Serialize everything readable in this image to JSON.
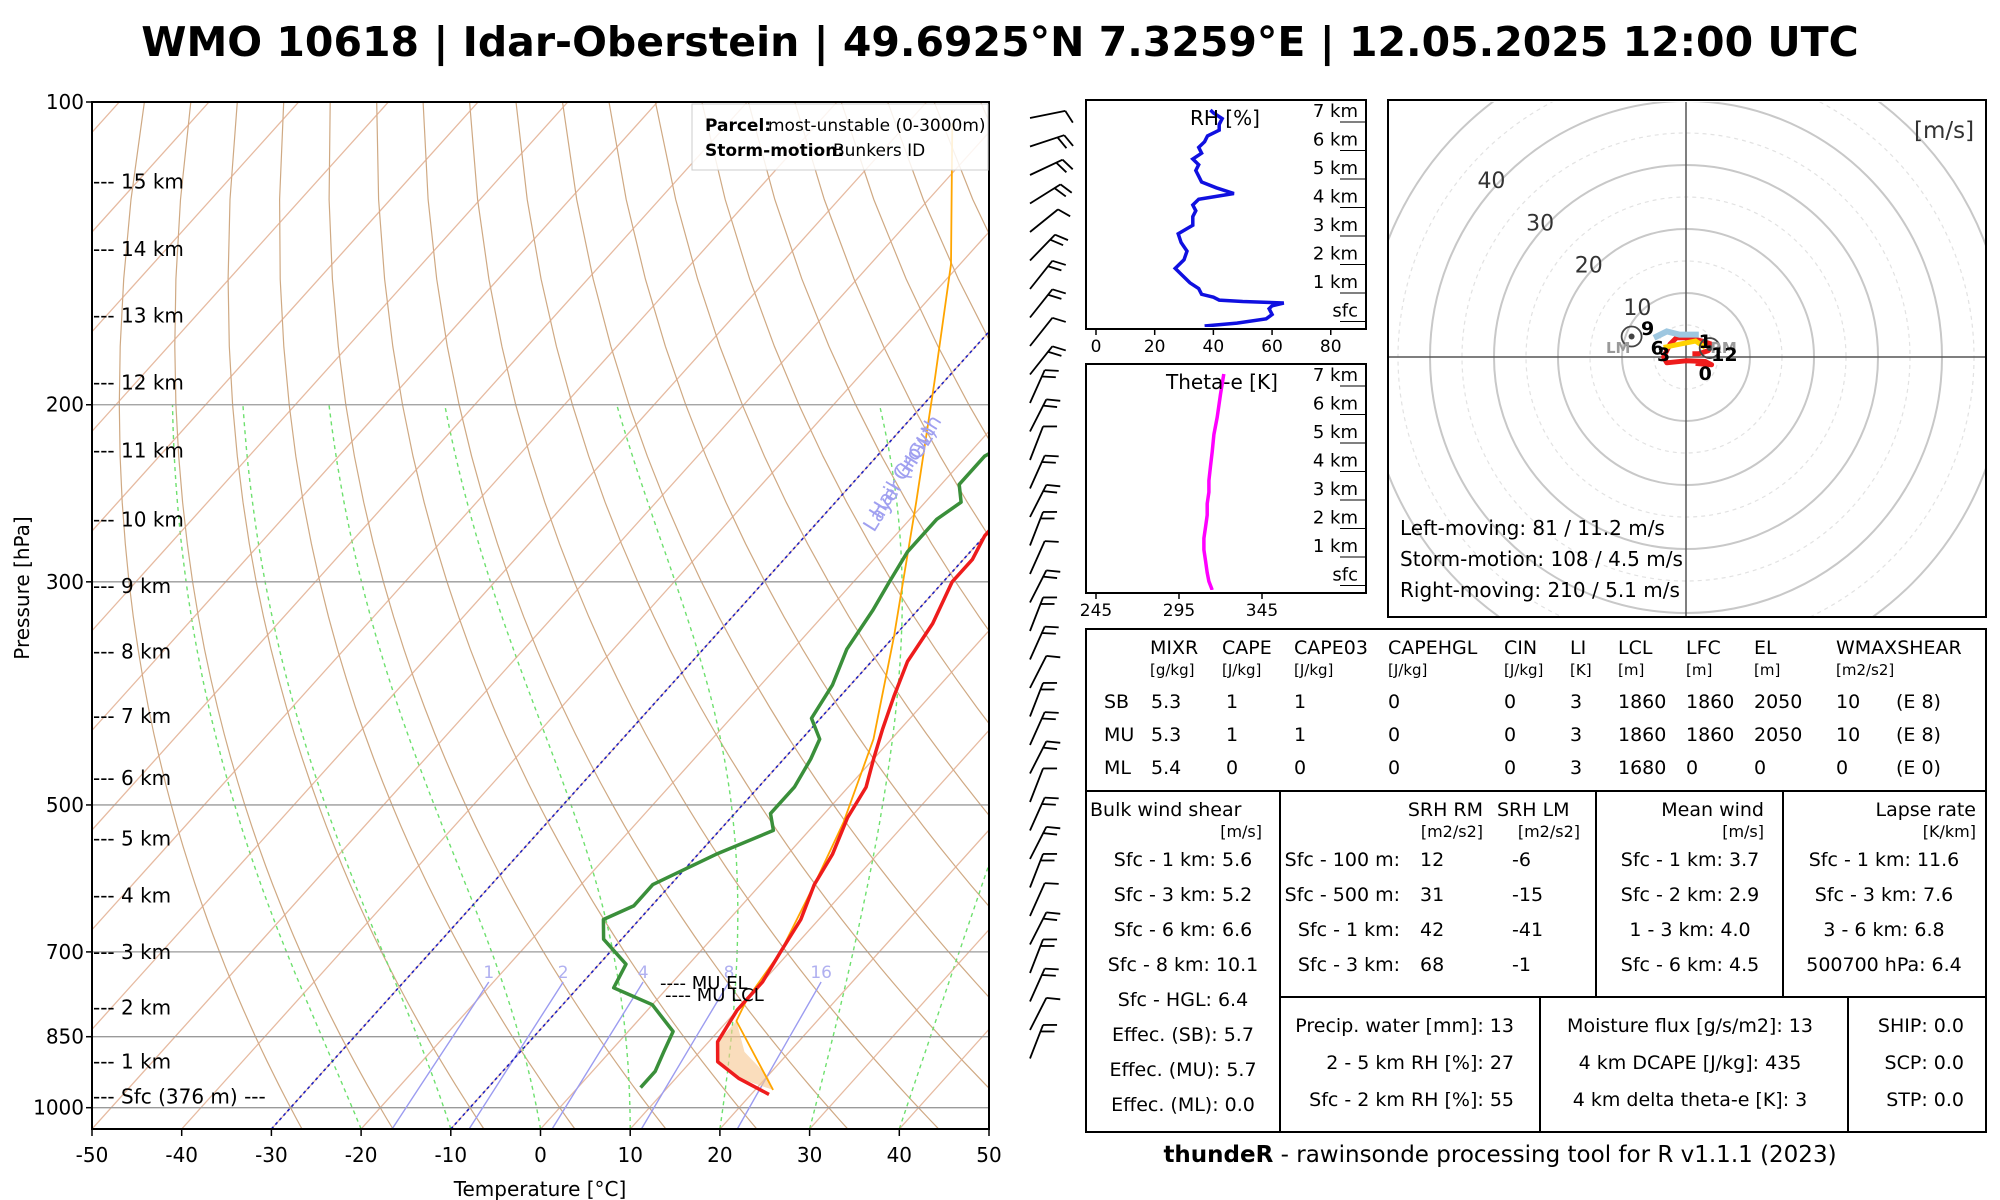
{
  "title": "WMO 10618 | Idar-Oberstein | 49.6925°N 7.3259°E | 12.05.2025 12:00 UTC",
  "skewt": {
    "ylabel": "Pressure [hPa]",
    "xlabel": "Temperature [°C]",
    "pressure_ticks": [
      "100",
      "200",
      "300",
      "500",
      "700",
      "850",
      "1000"
    ],
    "temp_ticks": [
      "-50",
      "-40",
      "-30",
      "-20",
      "-10",
      "0",
      "10",
      "20",
      "30",
      "40",
      "50"
    ],
    "height_labels": [
      "--- 15 km",
      "--- 14 km",
      "--- 13 km",
      "--- 12 km",
      "--- 11 km",
      "--- 10 km",
      "--- 9 km",
      "--- 8 km",
      "--- 7 km",
      "--- 6 km",
      "--- 5 km",
      "--- 4 km",
      "--- 3 km",
      "--- 2 km",
      "--- 1 km",
      "--- Sfc (376 m) ---"
    ],
    "mixing_ratio_labels": [
      "1",
      "2",
      "4",
      "8",
      "16"
    ],
    "hgl_label_1": "Hail Growth",
    "hgl_label_2": "Layer (HGL)",
    "mu_el": "---- MU EL",
    "mu_lcl": "---- MU LCL",
    "info_box": {
      "parcel_key": "Parcel:",
      "parcel_value": "most-unstable (0-3000m)",
      "motion_key": "Storm-motion:",
      "motion_value": "Bunkers ID"
    }
  },
  "rh_panel": {
    "title": "RH [%]",
    "x_ticks": [
      "0",
      "20",
      "40",
      "60",
      "80"
    ],
    "height_labels": [
      "7 km",
      "6 km",
      "5 km",
      "4 km",
      "3 km",
      "2 km",
      "1 km",
      "sfc"
    ]
  },
  "thetae_panel": {
    "title": "Theta-e [K]",
    "x_ticks": [
      "245",
      "295",
      "345"
    ],
    "height_labels": [
      "7 km",
      "6 km",
      "5 km",
      "4 km",
      "3 km",
      "2 km",
      "1 km",
      "sfc"
    ]
  },
  "hodograph": {
    "unit": "[m/s]",
    "ring_labels": [
      "10",
      "20",
      "30",
      "40"
    ],
    "level_labels": [
      "0",
      "1",
      "3",
      "6",
      "9",
      "12"
    ],
    "rm_label": "RM",
    "lm_label": "LM",
    "left_moving": "Left-moving: 81 / 11.2 m/s",
    "storm_motion": "Storm-motion: 108 / 4.5 m/s",
    "right_moving": "Right-moving: 210 / 5.1 m/s"
  },
  "params_table": {
    "headers": [
      "MIXR",
      "CAPE",
      "CAPE03",
      "CAPEHGL",
      "CIN",
      "LI",
      "LCL",
      "LFC",
      "EL",
      "WMAXSHEAR"
    ],
    "units": [
      "[g/kg]",
      "[J/kg]",
      "[J/kg]",
      "[J/kg]",
      "[J/kg]",
      "[K]",
      "[m]",
      "[m]",
      "[m]",
      "[m2/s2]"
    ],
    "rows": [
      [
        "SB",
        "5.3",
        "1",
        "1",
        "0",
        "0",
        "3",
        "1860",
        "1860",
        "2050",
        "10",
        "(E 8)"
      ],
      [
        "MU",
        "5.3",
        "1",
        "1",
        "0",
        "0",
        "3",
        "1860",
        "1860",
        "2050",
        "10",
        "(E 8)"
      ],
      [
        "ML",
        "5.4",
        "0",
        "0",
        "0",
        "0",
        "3",
        "1680",
        "0",
        "0",
        "0",
        "(E 0)"
      ]
    ]
  },
  "bulk_shear": {
    "title": "Bulk wind shear",
    "unit": "[m/s]",
    "rows": [
      "Sfc - 1 km: 5.6",
      "Sfc - 3 km: 5.2",
      "Sfc - 6 km: 6.6",
      "Sfc - 8 km: 10.1",
      "Sfc - HGL: 6.4",
      "Effec. (SB): 5.7",
      "Effec. (MU): 5.7",
      "Effec. (ML): 0.0"
    ]
  },
  "srh": {
    "title_rm": "SRH RM",
    "title_lm": "SRH LM",
    "unit_rm": "[m2/s2]",
    "unit_lm": "[m2/s2]",
    "rows": [
      {
        "label": "Sfc - 100 m:",
        "rm": "12",
        "lm": "-6"
      },
      {
        "label": "Sfc - 500 m:",
        "rm": "31",
        "lm": "-15"
      },
      {
        "label": "Sfc - 1 km:",
        "rm": "42",
        "lm": "-41"
      },
      {
        "label": "Sfc - 3 km:",
        "rm": "68",
        "lm": "-1"
      }
    ]
  },
  "mean_wind": {
    "title": "Mean wind",
    "unit": "[m/s]",
    "rows": [
      "Sfc - 1 km: 3.7",
      "Sfc - 2 km: 2.9",
      "1 - 3 km: 4.0",
      "Sfc - 6 km: 4.5"
    ]
  },
  "lapse_rate": {
    "title": "Lapse rate",
    "unit": "[K/km]",
    "rows": [
      "Sfc - 1 km: 11.6",
      "Sfc - 3 km: 7.6",
      "3 - 6 km: 6.8",
      "500700 hPa: 6.4"
    ]
  },
  "moisture": {
    "rows": [
      "Precip. water [mm]: 13",
      "2 - 5 km RH [%]: 27",
      "Sfc - 2 km RH [%]: 55"
    ]
  },
  "flux": {
    "rows": [
      "Moisture flux [g/s/m2]: 13",
      "4 km DCAPE [J/kg]: 435",
      "4 km delta theta-e [K]: 3"
    ]
  },
  "composites": {
    "rows": [
      "SHIP: 0.0",
      "SCP: 0.0",
      "STP: 0.0"
    ]
  },
  "footer": {
    "name": "thundeR",
    "rest": " - rawinsonde processing tool for R v1.1.1 (2023)"
  },
  "colors": {
    "temperature": "#ee1c1c",
    "dewpoint": "#3a8f3a",
    "parcel": "#ffa500",
    "rh": "#1010e0",
    "thetae": "#ff00ff",
    "hgl": "#2020c0"
  },
  "chart_data": [
    {
      "type": "line",
      "title": "",
      "xlabel": "Temperature [°C]",
      "ylabel": "Pressure [hPa]",
      "xlim": [
        -50,
        50
      ],
      "ylim": [
        1050,
        100
      ],
      "y_scale": "log",
      "series": [
        {
          "name": "",
          "role": "temperature",
          "color": "#ee1c1c",
          "points": [
            [
              22,
              970
            ],
            [
              17,
              935
            ],
            [
              13,
              900
            ],
            [
              11,
              860
            ],
            [
              10,
              800
            ],
            [
              10,
              750
            ],
            [
              9,
              700
            ],
            [
              8,
              650
            ],
            [
              6,
              600
            ],
            [
              5,
              560
            ],
            [
              3,
              515
            ],
            [
              2,
              480
            ],
            [
              0,
              450
            ],
            [
              -2,
              420
            ],
            [
              -4,
              390
            ],
            [
              -6,
              360
            ],
            [
              -7,
              330
            ],
            [
              -9,
              300
            ],
            [
              -9,
              285
            ],
            [
              -10,
              270
            ],
            [
              -10,
              255
            ],
            [
              -10,
              240
            ],
            [
              -9,
              230
            ],
            [
              -9,
              220
            ],
            [
              -8,
              210
            ],
            [
              -8,
              200
            ],
            [
              -2,
              190
            ],
            [
              -1,
              180
            ],
            [
              2,
              170
            ],
            [
              5,
              160
            ],
            [
              6,
              150
            ],
            [
              7,
              143
            ],
            [
              9,
              135
            ],
            [
              11,
              130
            ],
            [
              13,
              125
            ],
            [
              14,
              120
            ],
            [
              14,
              115
            ],
            [
              14,
              110
            ],
            [
              15,
              105
            ],
            [
              15,
              100
            ]
          ]
        },
        {
          "name": "",
          "role": "dewpoint",
          "color": "#3a8f3a",
          "points": [
            [
              7,
              955
            ],
            [
              7,
              920
            ],
            [
              6,
              880
            ],
            [
              5,
              840
            ],
            [
              0,
              790
            ],
            [
              -6,
              760
            ],
            [
              -7,
              720
            ],
            [
              -12,
              680
            ],
            [
              -14,
              650
            ],
            [
              -12,
              630
            ],
            [
              -12,
              600
            ],
            [
              -8,
              560
            ],
            [
              -4,
              530
            ],
            [
              -6,
              510
            ],
            [
              -6,
              480
            ],
            [
              -7,
              450
            ],
            [
              -8,
              430
            ],
            [
              -11,
              410
            ],
            [
              -12,
              380
            ],
            [
              -14,
              350
            ],
            [
              -15,
              320
            ],
            [
              -16,
              300
            ],
            [
              -17,
              280
            ],
            [
              -17,
              260
            ],
            [
              -16,
              250
            ],
            [
              -18,
              240
            ],
            [
              -18,
              225
            ],
            [
              -16,
              215
            ],
            [
              -19,
              205
            ],
            [
              -22,
              195
            ],
            [
              -23,
              185
            ],
            [
              -23,
              175
            ],
            [
              -24,
              165
            ],
            [
              -23,
              155
            ],
            [
              -22,
              145
            ],
            [
              -19,
              135
            ],
            [
              -14,
              125
            ],
            [
              -13,
              118
            ],
            [
              -11,
              110
            ],
            [
              -9,
              106
            ],
            [
              -6,
              100
            ]
          ]
        },
        {
          "name": "",
          "role": "parcel",
          "color": "#ffa500",
          "points": [
            [
              22,
              960
            ],
            [
              11,
              820
            ],
            [
              10,
              780
            ],
            [
              9,
              700
            ],
            [
              6,
              600
            ],
            [
              3,
              520
            ],
            [
              -2,
              430
            ],
            [
              -10,
              340
            ],
            [
              -21,
              250
            ],
            [
              -31,
              190
            ],
            [
              -41,
              145
            ],
            [
              -55,
              105
            ]
          ]
        }
      ],
      "mixing_ratio_lines": [
        1,
        2,
        4,
        8,
        16
      ]
    },
    {
      "type": "line",
      "title": "RH [%]",
      "xlim": [
        0,
        100
      ],
      "ylim": [
        0,
        7.5
      ],
      "series": [
        {
          "name": "",
          "color": "#1010e0",
          "x": [
            37,
            48,
            58,
            60,
            59,
            60,
            64,
            50,
            42,
            40,
            36,
            35,
            32,
            30,
            27,
            30,
            31,
            29,
            28,
            33,
            33,
            34,
            33,
            35,
            47,
            41,
            36,
            35,
            34,
            35,
            33,
            36,
            35,
            37,
            38,
            42,
            42,
            43,
            40,
            39
          ],
          "y": [
            0,
            0.1,
            0.25,
            0.4,
            0.6,
            0.7,
            0.8,
            0.85,
            0.9,
            1.0,
            1.1,
            1.3,
            1.5,
            1.7,
            2.0,
            2.3,
            2.6,
            2.9,
            3.2,
            3.5,
            3.8,
            4.0,
            4.2,
            4.4,
            4.6,
            4.8,
            5.0,
            5.2,
            5.4,
            5.6,
            5.8,
            6.0,
            6.2,
            6.4,
            6.6,
            6.8,
            7.0,
            7.2,
            7.4,
            7.5
          ]
        }
      ]
    },
    {
      "type": "line",
      "title": "Theta-e [K]",
      "xlim": [
        245,
        365
      ],
      "ylim": [
        0,
        7.5
      ],
      "series": [
        {
          "name": "",
          "color": "#ff00ff",
          "x": [
            315,
            313,
            312,
            311,
            310,
            310,
            311,
            312,
            312,
            313,
            313,
            314,
            315,
            316,
            318,
            320,
            322
          ],
          "y": [
            0,
            0.3,
            0.6,
            1.0,
            1.4,
            1.8,
            2.2,
            2.6,
            3.0,
            3.4,
            3.8,
            4.3,
            4.8,
            5.4,
            6.0,
            6.8,
            7.5
          ]
        }
      ]
    },
    {
      "type": "line",
      "title": "[m/s]",
      "xlim": [
        -40,
        40
      ],
      "ylim": [
        -40,
        40
      ],
      "points": [
        [
          1.5,
          -1.0
        ],
        [
          4.0,
          -1.2
        ],
        [
          3.0,
          -0.7
        ],
        [
          0.0,
          -0.6
        ],
        [
          -3.0,
          -0.9
        ],
        [
          -3.5,
          0.0
        ],
        [
          -2.5,
          2.0
        ],
        [
          -1.5,
          3.0
        ],
        [
          0.5,
          3.0
        ],
        [
          2.5,
          2.5
        ],
        [
          4.0,
          2.0
        ],
        [
          3.5,
          1.0
        ],
        [
          2.0,
          0.5
        ],
        [
          1.0,
          0.5
        ]
      ],
      "motion_markers": {
        "RM": [
          1.2,
          -3.6
        ],
        "LM": [
          -11.0,
          -1.8
        ],
        "mean": [
          4.3,
          1.4
        ]
      },
      "level_positions": {
        "0": [
          3.0,
          -2.5
        ],
        "1": [
          3.0,
          2.5
        ],
        "3": [
          -3.5,
          0.5
        ],
        "6": [
          -4.5,
          1.5
        ],
        "9": [
          -6.0,
          4.5
        ],
        "12": [
          6.0,
          0.5
        ]
      }
    }
  ]
}
